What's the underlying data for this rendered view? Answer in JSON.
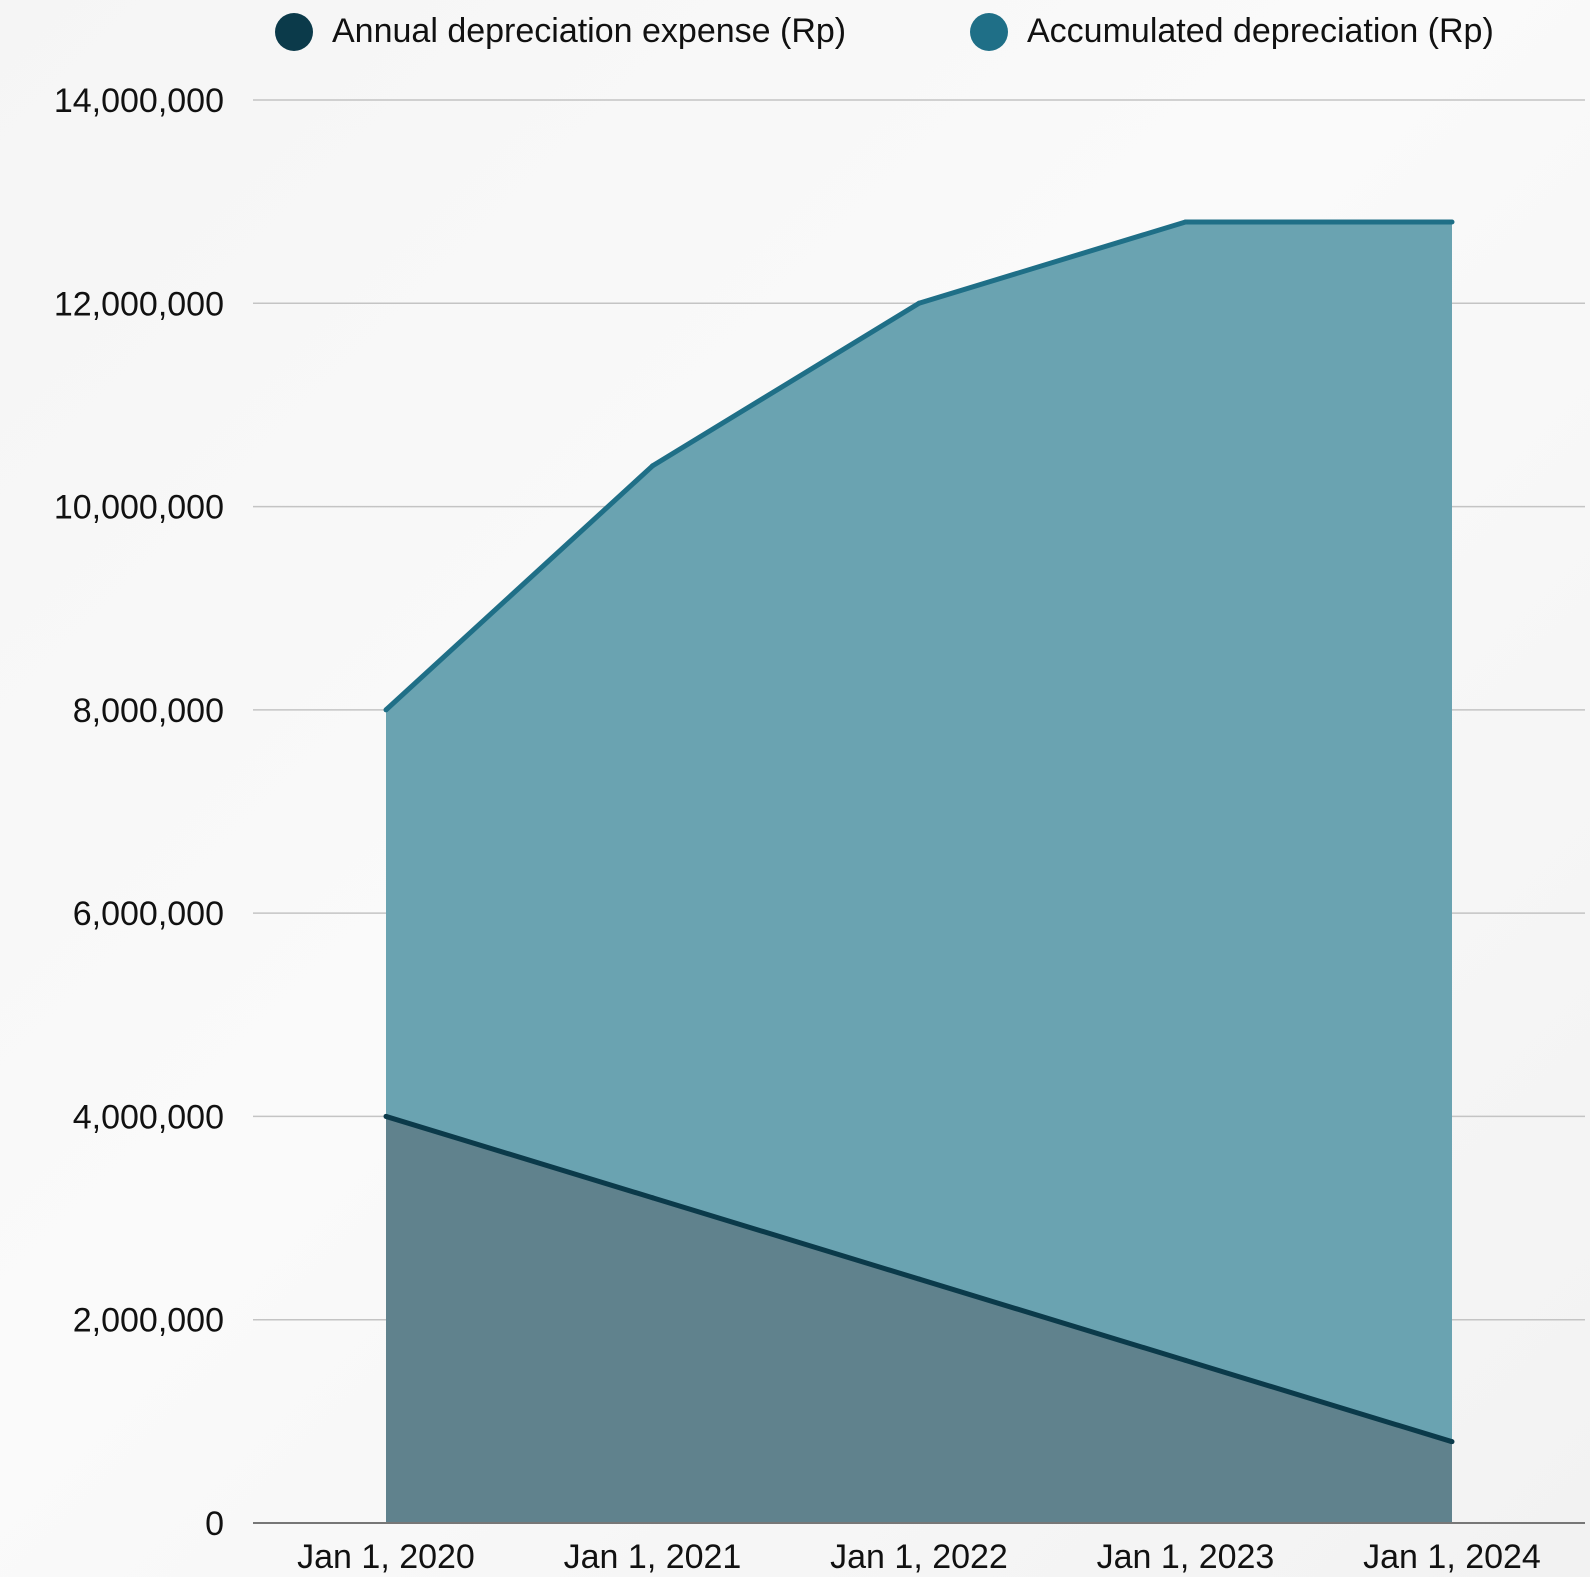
{
  "chart_data": {
    "type": "area",
    "title": "",
    "xlabel": "",
    "ylabel": "",
    "x": [
      "Jan 1, 2020",
      "Jan 1, 2021",
      "Jan 1, 2022",
      "Jan 1, 2023",
      "Jan 1, 2024"
    ],
    "ylim": [
      0,
      14000000
    ],
    "yticks": [
      "0",
      "2,000,000",
      "4,000,000",
      "6,000,000",
      "8,000,000",
      "10,000,000",
      "12,000,000",
      "14,000,000"
    ],
    "grid": true,
    "legend_position": "top",
    "series": [
      {
        "name": "Annual depreciation expense (Rp)",
        "values": [
          4000000,
          3200000,
          2400000,
          1600000,
          800000
        ],
        "color": "#0b3a4a",
        "fill": "#5e7c87"
      },
      {
        "name": "Accumulated depreciation (Rp)",
        "values": [
          8000000,
          10400000,
          12000000,
          12800000,
          12800000
        ],
        "color": "#1f6f87",
        "fill": "#6aa3b1"
      }
    ]
  }
}
